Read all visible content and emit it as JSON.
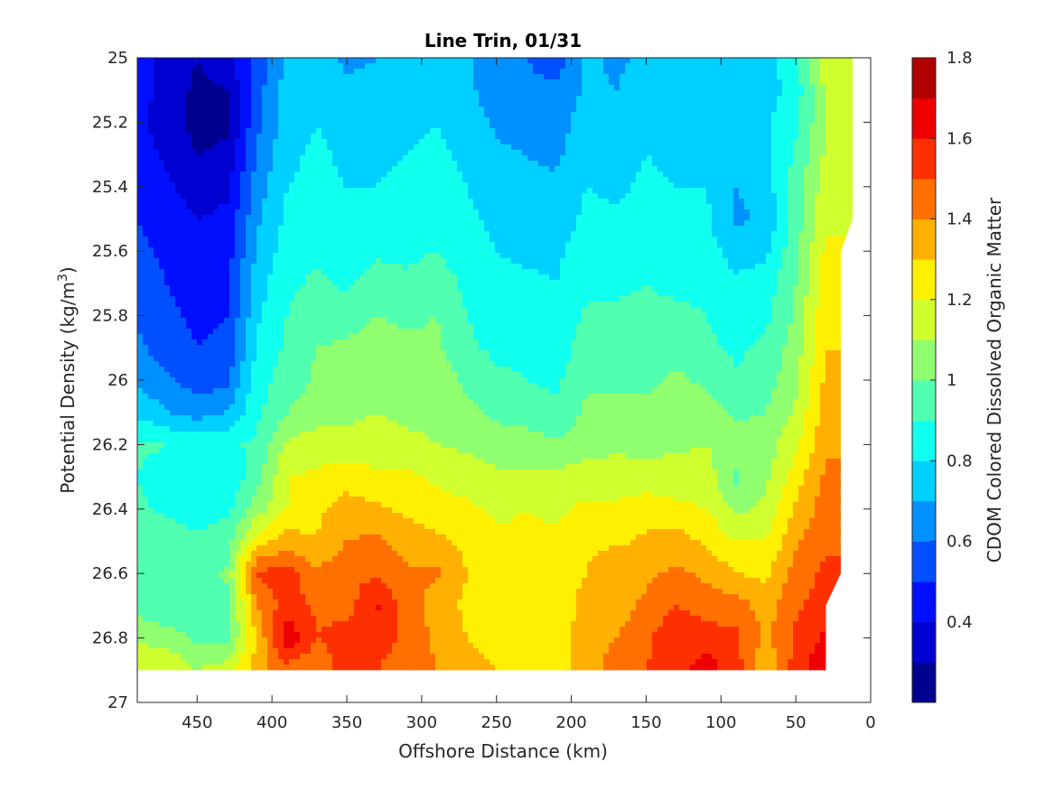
{
  "chart_data": {
    "type": "heatmap",
    "subtype": "filled-contour",
    "title": "Line Trin, 01/31",
    "xlabel": "Offshore Distance (km)",
    "ylabel": "Potential Density (kg/m",
    "ylabel_sup": "3",
    "ylabel_close": ")",
    "colorbar_label": "CDOM Colored Dissolved Organic Matter",
    "colormap": "jet",
    "x_reversed": true,
    "y_reversed": true,
    "xlim": [
      0,
      490
    ],
    "ylim": [
      25,
      27
    ],
    "xticks": [
      450,
      400,
      350,
      300,
      250,
      200,
      150,
      100,
      50,
      0
    ],
    "xtick_labels": [
      "450",
      "400",
      "350",
      "300",
      "250",
      "200",
      "150",
      "100",
      "50",
      "0"
    ],
    "yticks": [
      25,
      25.2,
      25.4,
      25.6,
      25.8,
      26,
      26.2,
      26.4,
      26.6,
      26.8,
      27
    ],
    "ytick_labels": [
      "25",
      "25.2",
      "25.4",
      "25.6",
      "25.8",
      "26",
      "26.2",
      "26.4",
      "26.6",
      "26.8",
      "27"
    ],
    "colorbar_range": [
      0.2,
      1.8
    ],
    "colorbar_ticks": [
      0.4,
      0.6,
      0.8,
      1,
      1.2,
      1.4,
      1.6,
      1.8
    ],
    "colorbar_tick_labels": [
      "0.4",
      "0.6",
      "0.8",
      "1",
      "1.2",
      "1.4",
      "1.6",
      "1.8"
    ],
    "contour_levels": [
      0.2,
      0.3,
      0.4,
      0.5,
      0.6,
      0.7,
      0.8,
      0.9,
      1.0,
      1.1,
      1.2,
      1.3,
      1.4,
      1.5,
      1.6,
      1.7,
      1.8
    ],
    "level_colors": [
      "#000090",
      "#0000d0",
      "#0010ff",
      "#0050ff",
      "#0090ff",
      "#00d0ff",
      "#10ffef",
      "#50ffaf",
      "#90ff6f",
      "#d0ff2f",
      "#ffef00",
      "#ffb000",
      "#ff7000",
      "#ff3000",
      "#ef0000",
      "#b00000"
    ],
    "data_x_range": [
      30,
      490
    ],
    "data_y_range": [
      25,
      26.9
    ],
    "depth_profiles": {
      "x": [
        490,
        470,
        450,
        430,
        410,
        390,
        370,
        350,
        330,
        310,
        290,
        270,
        250,
        230,
        210,
        190,
        170,
        150,
        130,
        110,
        90,
        70,
        50,
        30
      ],
      "y": [
        25.0,
        25.1,
        25.2,
        25.3,
        25.4,
        25.5,
        25.6,
        25.7,
        25.8,
        25.9,
        26.0,
        26.1,
        26.2,
        26.3,
        26.4,
        26.5,
        26.6,
        26.7,
        26.8,
        26.9
      ],
      "columns": [
        [
          0.45,
          0.45,
          0.42,
          0.45,
          0.48,
          0.5,
          0.52,
          0.55,
          0.58,
          0.62,
          0.68,
          0.78,
          0.92,
          0.9,
          0.92,
          0.95,
          0.9,
          0.95,
          1.1,
          1.15
        ],
        [
          0.35,
          0.35,
          0.35,
          0.38,
          0.42,
          0.45,
          0.48,
          0.5,
          0.52,
          0.55,
          0.62,
          0.7,
          0.9,
          0.85,
          0.88,
          0.95,
          0.92,
          0.9,
          1.05,
          1.2
        ],
        [
          0.3,
          0.28,
          0.26,
          0.3,
          0.35,
          0.4,
          0.42,
          0.45,
          0.48,
          0.5,
          0.55,
          0.65,
          0.88,
          0.8,
          0.85,
          0.92,
          0.95,
          0.92,
          0.98,
          1.1
        ],
        [
          0.35,
          0.3,
          0.28,
          0.32,
          0.38,
          0.42,
          0.45,
          0.48,
          0.5,
          0.52,
          0.58,
          0.7,
          0.88,
          0.82,
          0.88,
          0.95,
          1.02,
          0.95,
          0.98,
          1.15
        ],
        [
          0.55,
          0.55,
          0.58,
          0.6,
          0.65,
          0.68,
          0.72,
          0.75,
          0.78,
          0.82,
          0.85,
          0.88,
          0.92,
          0.95,
          1.05,
          1.25,
          1.52,
          1.4,
          1.3,
          1.35
        ],
        [
          0.72,
          0.75,
          0.75,
          0.78,
          0.8,
          0.82,
          0.85,
          0.88,
          0.9,
          0.92,
          0.95,
          1.0,
          1.12,
          1.2,
          1.2,
          1.35,
          1.55,
          1.55,
          1.68,
          1.45
        ],
        [
          0.75,
          0.78,
          0.8,
          0.82,
          0.82,
          0.85,
          0.88,
          0.92,
          0.95,
          1.0,
          1.02,
          1.05,
          1.15,
          1.22,
          1.28,
          1.3,
          1.42,
          1.48,
          1.5,
          1.42
        ],
        [
          0.68,
          0.72,
          0.75,
          0.78,
          0.8,
          0.82,
          0.85,
          0.88,
          0.95,
          1.02,
          1.05,
          1.08,
          1.12,
          1.25,
          1.35,
          1.4,
          1.48,
          1.45,
          1.55,
          1.55
        ],
        [
          0.7,
          0.72,
          0.75,
          0.78,
          0.8,
          0.85,
          0.88,
          0.95,
          1.0,
          1.05,
          1.08,
          1.1,
          1.15,
          1.22,
          1.32,
          1.42,
          1.48,
          1.62,
          1.55,
          1.5
        ],
        [
          0.78,
          0.78,
          0.78,
          0.8,
          0.82,
          0.85,
          0.88,
          0.92,
          0.98,
          1.02,
          1.05,
          1.08,
          1.12,
          1.22,
          1.28,
          1.35,
          1.42,
          1.45,
          1.48,
          1.45
        ],
        [
          0.75,
          0.78,
          0.8,
          0.82,
          0.85,
          0.88,
          0.9,
          0.95,
          1.0,
          1.02,
          1.05,
          1.08,
          1.1,
          1.18,
          1.25,
          1.32,
          1.42,
          1.35,
          1.38,
          1.4
        ],
        [
          0.72,
          0.72,
          0.75,
          0.78,
          0.8,
          0.82,
          0.85,
          0.88,
          0.9,
          0.92,
          0.98,
          1.02,
          1.08,
          1.15,
          1.22,
          1.28,
          1.3,
          1.28,
          1.3,
          1.32
        ],
        [
          0.62,
          0.65,
          0.68,
          0.72,
          0.75,
          0.78,
          0.8,
          0.82,
          0.85,
          0.88,
          0.92,
          0.98,
          1.05,
          1.12,
          1.18,
          1.22,
          1.25,
          1.22,
          1.28,
          1.3
        ],
        [
          0.6,
          0.62,
          0.65,
          0.7,
          0.72,
          0.75,
          0.78,
          0.82,
          0.85,
          0.88,
          0.9,
          0.95,
          1.05,
          1.12,
          1.2,
          1.22,
          1.25,
          1.22,
          1.25,
          1.28
        ],
        [
          0.55,
          0.62,
          0.65,
          0.68,
          0.72,
          0.75,
          0.78,
          0.8,
          0.82,
          0.85,
          0.88,
          0.92,
          1.02,
          1.12,
          1.18,
          1.22,
          1.25,
          1.2,
          1.22,
          1.25
        ],
        [
          0.72,
          0.72,
          0.75,
          0.78,
          0.8,
          0.82,
          0.85,
          0.88,
          0.92,
          0.95,
          0.98,
          1.02,
          1.05,
          1.15,
          1.22,
          1.28,
          1.3,
          1.35,
          1.38,
          1.38
        ],
        [
          0.68,
          0.7,
          0.72,
          0.75,
          0.78,
          0.82,
          0.85,
          0.88,
          0.92,
          0.95,
          0.98,
          1.02,
          1.08,
          1.15,
          1.22,
          1.28,
          1.4,
          1.35,
          1.4,
          1.42
        ],
        [
          0.72,
          0.75,
          0.78,
          0.8,
          0.82,
          0.85,
          0.88,
          0.9,
          0.92,
          0.95,
          0.98,
          1.02,
          1.06,
          1.15,
          1.25,
          1.32,
          1.38,
          1.42,
          1.48,
          1.5
        ],
        [
          0.7,
          0.72,
          0.75,
          0.78,
          0.8,
          0.82,
          0.85,
          0.88,
          0.92,
          0.95,
          1.02,
          1.05,
          1.08,
          1.15,
          1.22,
          1.35,
          1.42,
          1.5,
          1.58,
          1.55
        ],
        [
          0.72,
          0.72,
          0.75,
          0.78,
          0.8,
          0.82,
          0.85,
          0.88,
          0.9,
          0.92,
          0.98,
          1.05,
          1.1,
          1.15,
          1.2,
          1.28,
          1.38,
          1.45,
          1.55,
          1.65
        ],
        [
          0.7,
          0.72,
          0.72,
          0.75,
          0.7,
          0.68,
          0.75,
          0.82,
          0.85,
          0.88,
          0.92,
          0.98,
          1.05,
          0.98,
          1.08,
          1.2,
          1.3,
          1.45,
          1.52,
          1.55
        ],
        [
          0.75,
          0.75,
          0.78,
          0.78,
          0.75,
          0.72,
          0.78,
          0.85,
          0.88,
          0.92,
          0.95,
          1.0,
          1.05,
          1.08,
          1.12,
          1.2,
          1.28,
          1.35,
          1.38,
          1.3
        ],
        [
          0.88,
          0.85,
          0.88,
          0.92,
          0.95,
          0.95,
          0.98,
          1.0,
          1.02,
          1.05,
          1.08,
          1.12,
          1.18,
          1.25,
          1.32,
          1.38,
          1.45,
          1.48,
          1.52,
          1.55
        ],
        [
          1.15,
          1.12,
          1.1,
          1.12,
          1.15,
          1.18,
          1.22,
          1.25,
          1.28,
          1.3,
          1.32,
          1.35,
          1.38,
          1.42,
          1.45,
          1.48,
          1.52,
          1.55,
          1.62,
          1.68
        ]
      ]
    }
  }
}
